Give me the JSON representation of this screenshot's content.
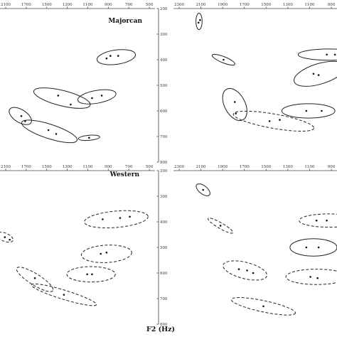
{
  "x_axis_title": "F2 (Hz)",
  "chart_data": [
    {
      "id": "top-left",
      "type": "scatter",
      "label": "Majorcan",
      "x_ticks": [
        "2100",
        "1700",
        "1500",
        "1300",
        "1100",
        "900",
        "700",
        "500"
      ],
      "y_ticks": [
        "200",
        "300",
        "400",
        "500",
        "600",
        "700",
        "800"
      ],
      "ellipses": [
        {
          "cx": 900,
          "cy": 390,
          "rx": 200,
          "ry": 28,
          "angle": -8,
          "style": "solid",
          "points": [
            [
              1000,
              395
            ],
            [
              960,
              385
            ],
            [
              880,
              385
            ]
          ]
        },
        {
          "cx": 1460,
          "cy": 550,
          "rx": 300,
          "ry": 30,
          "angle": 14,
          "style": "solid",
          "points": [
            [
              1500,
              540
            ],
            [
              1370,
              575
            ]
          ]
        },
        {
          "cx": 1100,
          "cy": 545,
          "rx": 200,
          "ry": 25,
          "angle": -10,
          "style": "solid",
          "points": [
            [
              1150,
              550
            ],
            [
              1050,
              540
            ]
          ]
        },
        {
          "cx": 1890,
          "cy": 620,
          "rx": 130,
          "ry": 25,
          "angle": 32,
          "style": "solid",
          "points": [
            [
              1880,
              620
            ],
            [
              1840,
              640
            ]
          ]
        },
        {
          "cx": 1590,
          "cy": 680,
          "rx": 300,
          "ry": 28,
          "angle": 18,
          "style": "solid",
          "points": [
            [
              1600,
              675
            ],
            [
              1520,
              690
            ]
          ]
        },
        {
          "cx": 1180,
          "cy": 705,
          "rx": 110,
          "ry": 10,
          "angle": -5,
          "style": "solid",
          "points": [
            [
              1180,
              705
            ]
          ]
        }
      ]
    },
    {
      "id": "top-right",
      "type": "scatter",
      "label": "",
      "x_ticks": [
        "2300",
        "2100",
        "1900",
        "1700",
        "1500",
        "1300",
        "1100",
        "900"
      ],
      "y_ticks": [],
      "ellipses": [
        {
          "cx": 2150,
          "cy": 250,
          "rx": 30,
          "ry": 32,
          "angle": 0,
          "style": "solid",
          "points": [
            [
              2155,
              255
            ],
            [
              2140,
              245
            ]
          ]
        },
        {
          "cx": 880,
          "cy": 380,
          "rx": 300,
          "ry": 22,
          "angle": 0,
          "style": "solid",
          "points": [
            [
              900,
              380
            ],
            [
              820,
              380
            ]
          ]
        },
        {
          "cx": 1910,
          "cy": 400,
          "rx": 120,
          "ry": 12,
          "angle": 22,
          "style": "solid",
          "points": [
            [
              1910,
              400
            ]
          ]
        },
        {
          "cx": 970,
          "cy": 455,
          "rx": 260,
          "ry": 40,
          "angle": -17,
          "style": "solid",
          "points": [
            [
              1030,
              455
            ],
            [
              980,
              460
            ]
          ]
        },
        {
          "cx": 1800,
          "cy": 575,
          "rx": 170,
          "ry": 40,
          "angle": 62,
          "style": "solid",
          "points": [
            [
              1800,
              565
            ],
            [
              1790,
              610
            ]
          ]
        },
        {
          "cx": 1080,
          "cy": 600,
          "rx": 260,
          "ry": 28,
          "angle": 0,
          "style": "solid",
          "points": [
            [
              1100,
              600
            ],
            [
              950,
              600
            ]
          ]
        },
        {
          "cx": 1420,
          "cy": 640,
          "rx": 400,
          "ry": 28,
          "angle": 10,
          "style": "dashed",
          "points": [
            [
              1460,
              640
            ],
            [
              1360,
              635
            ]
          ]
        }
      ]
    },
    {
      "id": "bottom-left",
      "type": "scatter",
      "label": "Western",
      "x_ticks": [
        "2100",
        "1700",
        "1500",
        "1300",
        "1100",
        "900",
        "700",
        "500"
      ],
      "y_ticks": [
        "200",
        "300",
        "400",
        "500",
        "600",
        "700",
        "800"
      ],
      "ellipses": [
        {
          "cx": 900,
          "cy": 390,
          "rx": 330,
          "ry": 32,
          "angle": -5,
          "style": "dashed",
          "points": [
            [
              1040,
              390
            ],
            [
              860,
              385
            ],
            [
              760,
              380
            ]
          ]
        },
        {
          "cx": 1000,
          "cy": 525,
          "rx": 260,
          "ry": 34,
          "angle": -3,
          "style": "dashed",
          "points": [
            [
              1060,
              525
            ],
            [
              1000,
              520
            ]
          ]
        },
        {
          "cx": 2050,
          "cy": 460,
          "rx": 90,
          "ry": 16,
          "angle": 22,
          "style": "dashed",
          "points": [
            [
              2050,
              460
            ],
            [
              2000,
              470
            ]
          ]
        },
        {
          "cx": 1160,
          "cy": 605,
          "rx": 250,
          "ry": 30,
          "angle": 0,
          "style": "dashed",
          "points": [
            [
              1200,
              605
            ],
            [
              1150,
              605
            ]
          ]
        },
        {
          "cx": 1740,
          "cy": 625,
          "rx": 220,
          "ry": 22,
          "angle": 32,
          "style": "dashed",
          "points": [
            [
              1740,
              620
            ]
          ]
        },
        {
          "cx": 1440,
          "cy": 685,
          "rx": 350,
          "ry": 18,
          "angle": 17,
          "style": "dashed",
          "points": [
            [
              1440,
              685
            ]
          ]
        }
      ]
    },
    {
      "id": "bottom-right",
      "type": "scatter",
      "label": "",
      "x_ticks": [
        "2300",
        "2100",
        "1900",
        "1700",
        "1500",
        "1300",
        "1100",
        "900"
      ],
      "y_ticks": [],
      "ellipses": [
        {
          "cx": 2110,
          "cy": 275,
          "rx": 80,
          "ry": 16,
          "angle": 38,
          "style": "solid",
          "points": [
            [
              2110,
              275
            ]
          ]
        },
        {
          "cx": 880,
          "cy": 395,
          "rx": 290,
          "ry": 26,
          "angle": 0,
          "style": "dashed",
          "points": [
            [
              1000,
              395
            ],
            [
              900,
              395
            ]
          ]
        },
        {
          "cx": 1940,
          "cy": 415,
          "rx": 140,
          "ry": 11,
          "angle": 30,
          "style": "dashed",
          "points": [
            [
              1940,
              415
            ]
          ]
        },
        {
          "cx": 1030,
          "cy": 500,
          "rx": 230,
          "ry": 34,
          "angle": 0,
          "style": "solid",
          "points": [
            [
              1100,
              500
            ],
            [
              980,
              500
            ]
          ]
        },
        {
          "cx": 1700,
          "cy": 590,
          "rx": 220,
          "ry": 32,
          "angle": 14,
          "style": "dashed",
          "points": [
            [
              1760,
              585
            ],
            [
              1680,
              590
            ],
            [
              1620,
              600
            ]
          ]
        },
        {
          "cx": 1000,
          "cy": 615,
          "rx": 300,
          "ry": 30,
          "angle": 0,
          "style": "dashed",
          "points": [
            [
              1060,
              615
            ],
            [
              990,
              620
            ]
          ]
        },
        {
          "cx": 1520,
          "cy": 730,
          "rx": 320,
          "ry": 22,
          "angle": 12,
          "style": "dashed",
          "points": [
            [
              1520,
              730
            ]
          ]
        }
      ]
    }
  ]
}
